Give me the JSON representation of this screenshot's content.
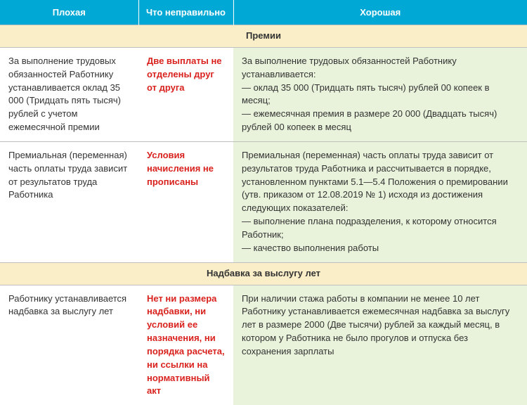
{
  "headers": {
    "bad": "Плохая",
    "wrong": "Что неправильно",
    "good": "Хорошая"
  },
  "section1": {
    "title": "Премии",
    "row1": {
      "bad": "За выполнение трудовых обязанностей Работнику устанавливается оклад 35 000 (Тридцать пять тысяч) рублей с учетом ежемесячной премии",
      "wrong": "Две выплаты не отделены друг от друга",
      "good": "За выполнение трудовых обязанностей Работнику устанавливается:\n— оклад 35 000 (Тридцать пять тысяч) рублей 00 копеек в месяц;\n— ежемесячная премия в размере 20 000 (Двадцать тысяч) рублей 00 копеек в месяц"
    },
    "row2": {
      "bad": "Премиальная (переменная) часть оплаты труда зависит от результатов труда Работника",
      "wrong": "Условия начисления не прописаны",
      "good": "Премиальная (переменная) часть оплаты труда зависит от результатов труда Работника и рассчитывается в порядке, установленном пунктами 5.1—5.4 Положения о премировании (утв. приказом от 12.08.2019 № 1) исходя из достижения следующих показателей:\n— выполнение плана подразделения, к которому относится Работник;\n— качество выполнения работы"
    }
  },
  "section2": {
    "title": "Надбавка за выслугу лет",
    "row1": {
      "bad": "Работнику устанавливается надбавка за выслугу лет",
      "wrong": "Нет ни размера надбавки, ни условий ее назначения, ни порядка расчета, ни ссылки на нормативный акт",
      "good": "При наличии стажа работы в компании не менее 10 лет Работнику устанавливается ежемесячная надбавка за выслугу лет в размере 2000 (Две тысячи) рублей за каждый месяц, в котором у Работника не было прогулов и отпуска без сохранения зарплаты"
    }
  }
}
